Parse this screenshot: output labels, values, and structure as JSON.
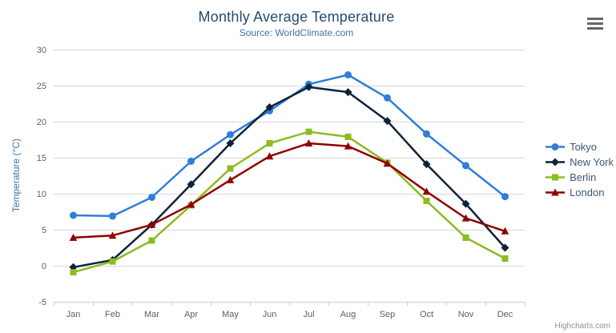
{
  "chart_data": {
    "type": "line",
    "title": "Monthly Average Temperature",
    "subtitle": "Source: WorldClimate.com",
    "xlabel": "",
    "ylabel": "Temperature (°C)",
    "ylim": [
      -5,
      30
    ],
    "ytick_step": 5,
    "yticks": [
      -5,
      0,
      5,
      10,
      15,
      20,
      25,
      30
    ],
    "grid": true,
    "legend_position": "right",
    "categories": [
      "Jan",
      "Feb",
      "Mar",
      "Apr",
      "May",
      "Jun",
      "Jul",
      "Aug",
      "Sep",
      "Oct",
      "Nov",
      "Dec"
    ],
    "series": [
      {
        "name": "Tokyo",
        "color": "#2f7ed8",
        "marker": "circle",
        "values": [
          7.0,
          6.9,
          9.5,
          14.5,
          18.2,
          21.5,
          25.2,
          26.5,
          23.3,
          18.3,
          13.9,
          9.6
        ]
      },
      {
        "name": "New York",
        "color": "#0d233a",
        "marker": "diamond",
        "values": [
          -0.2,
          0.8,
          5.7,
          11.3,
          17.0,
          22.0,
          24.8,
          24.1,
          20.1,
          14.1,
          8.6,
          2.5
        ]
      },
      {
        "name": "Berlin",
        "color": "#8bbc21",
        "marker": "square",
        "values": [
          -0.9,
          0.6,
          3.5,
          8.4,
          13.5,
          17.0,
          18.6,
          17.9,
          14.3,
          9.0,
          3.9,
          1.0
        ]
      },
      {
        "name": "London",
        "color": "#910000",
        "marker": "triangle",
        "values": [
          3.9,
          4.2,
          5.7,
          8.5,
          11.9,
          15.2,
          17.0,
          16.6,
          14.2,
          10.3,
          6.6,
          4.8
        ]
      }
    ]
  },
  "credits": {
    "label": "Highcharts.com"
  },
  "styles": {
    "title_color": "#274b6d",
    "subtitle_color": "#4572A7",
    "axis_title_color": "#4572A7",
    "tick_label_color": "#606060",
    "gridline_color": "#D8D8D8",
    "axis_line_color": "#C0D0E0",
    "legend_text_color": "#3E576F",
    "credits_color": "#909090",
    "menu_icon_color": "#666666"
  }
}
